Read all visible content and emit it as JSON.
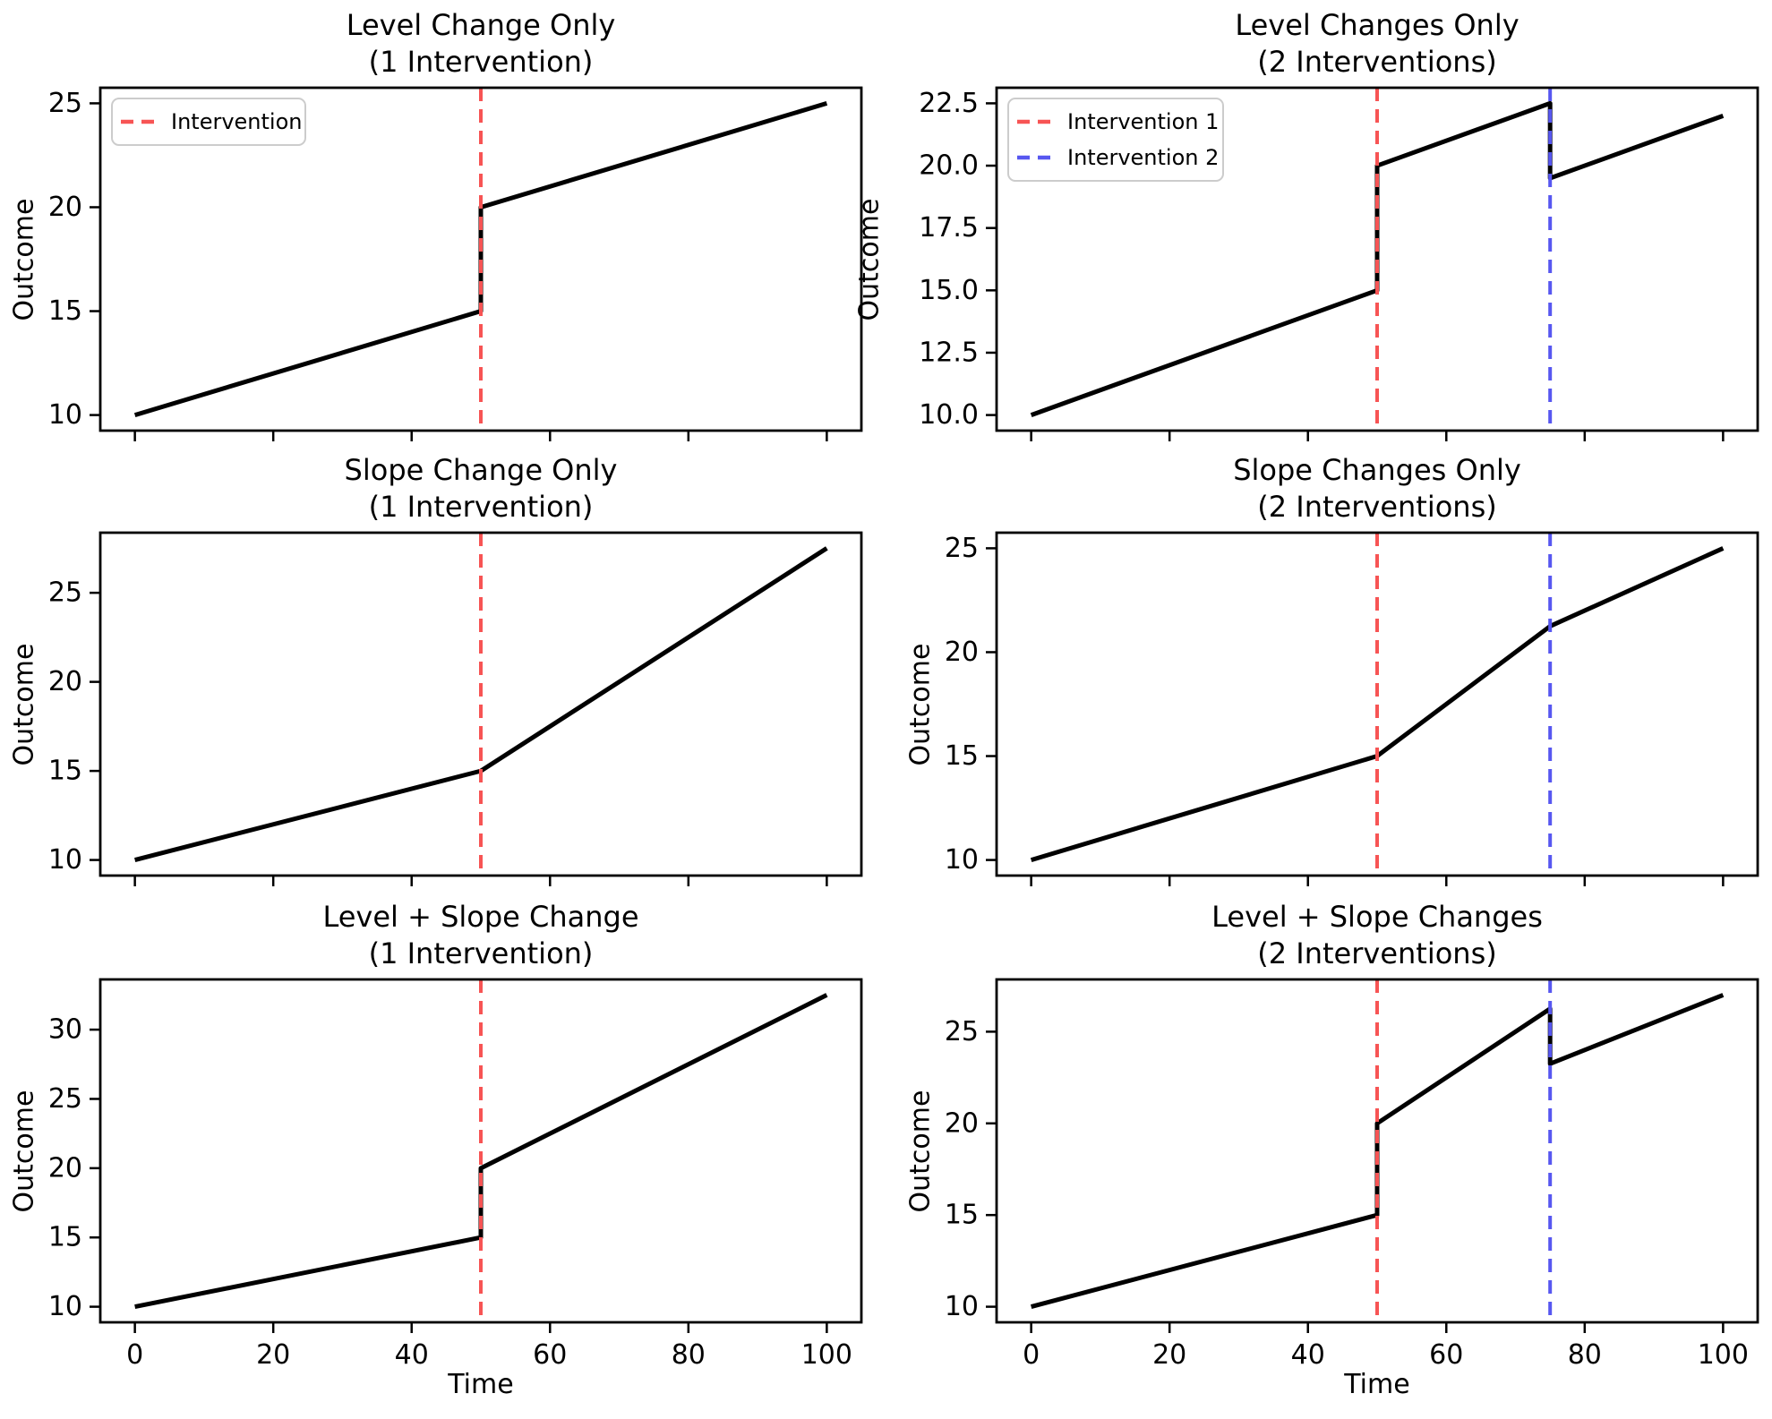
{
  "figure": {
    "background": "#ffffff",
    "series_color": "#000000",
    "intervention1_color": "#f75454",
    "intervention2_color": "#5757f0"
  },
  "chart_data": [
    {
      "type": "line",
      "title": "Level Change Only",
      "subtitle": "(1 Intervention)",
      "ylabel": "Outcome",
      "xlabel": "",
      "grid": false,
      "legend_position": "upper-left",
      "xlim": [
        -5,
        105
      ],
      "ylim": [
        9.25,
        25.75
      ],
      "xticks": [
        0,
        20,
        40,
        60,
        80,
        100
      ],
      "xtick_labels": [],
      "yticks": [
        10,
        15,
        20,
        25
      ],
      "ytick_labels": [
        "10",
        "15",
        "20",
        "25"
      ],
      "series": [
        {
          "name": "Outcome",
          "color": "#000000",
          "points": [
            [
              0,
              10
            ],
            [
              50,
              15
            ],
            [
              50,
              20
            ],
            [
              100,
              25
            ]
          ]
        }
      ],
      "interventions": [
        {
          "x": 50,
          "color": "#f75454",
          "style": "dashed"
        }
      ],
      "legend": {
        "visible": true,
        "items": [
          {
            "label": "Intervention",
            "color": "#f75454"
          }
        ]
      }
    },
    {
      "type": "line",
      "title": "Level Changes Only",
      "subtitle": "(2 Interventions)",
      "ylabel": "Outcome",
      "xlabel": "",
      "grid": false,
      "legend_position": "upper-left",
      "xlim": [
        -5,
        105
      ],
      "ylim": [
        9.375,
        23.125
      ],
      "xticks": [
        0,
        20,
        40,
        60,
        80,
        100
      ],
      "xtick_labels": [],
      "yticks": [
        10,
        12.5,
        15,
        17.5,
        20,
        22.5
      ],
      "ytick_labels": [
        "10.0",
        "12.5",
        "15.0",
        "17.5",
        "20.0",
        "22.5"
      ],
      "series": [
        {
          "name": "Outcome",
          "color": "#000000",
          "points": [
            [
              0,
              10
            ],
            [
              50,
              15
            ],
            [
              50,
              20
            ],
            [
              75,
              22.5
            ],
            [
              75,
              19.5
            ],
            [
              100,
              22
            ]
          ]
        }
      ],
      "interventions": [
        {
          "x": 50,
          "color": "#f75454",
          "style": "dashed"
        },
        {
          "x": 75,
          "color": "#5757f0",
          "style": "dashed"
        }
      ],
      "legend": {
        "visible": true,
        "items": [
          {
            "label": "Intervention 1",
            "color": "#f75454"
          },
          {
            "label": "Intervention 2",
            "color": "#5757f0"
          }
        ]
      }
    },
    {
      "type": "line",
      "title": "Slope Change Only",
      "subtitle": "(1 Intervention)",
      "ylabel": "Outcome",
      "xlabel": "",
      "grid": false,
      "legend_position": "none",
      "xlim": [
        -5,
        105
      ],
      "ylim": [
        9.125,
        28.375
      ],
      "xticks": [
        0,
        20,
        40,
        60,
        80,
        100
      ],
      "xtick_labels": [],
      "yticks": [
        10,
        15,
        20,
        25
      ],
      "ytick_labels": [
        "10",
        "15",
        "20",
        "25"
      ],
      "series": [
        {
          "name": "Outcome",
          "color": "#000000",
          "points": [
            [
              0,
              10
            ],
            [
              50,
              15
            ],
            [
              100,
              27.5
            ]
          ]
        }
      ],
      "interventions": [
        {
          "x": 50,
          "color": "#f75454",
          "style": "dashed"
        }
      ],
      "legend": {
        "visible": false,
        "items": []
      }
    },
    {
      "type": "line",
      "title": "Slope Changes Only",
      "subtitle": "(2 Interventions)",
      "ylabel": "Outcome",
      "xlabel": "",
      "grid": false,
      "legend_position": "none",
      "xlim": [
        -5,
        105
      ],
      "ylim": [
        9.25,
        25.75
      ],
      "xticks": [
        0,
        20,
        40,
        60,
        80,
        100
      ],
      "xtick_labels": [],
      "yticks": [
        10,
        15,
        20,
        25
      ],
      "ytick_labels": [
        "10",
        "15",
        "20",
        "25"
      ],
      "series": [
        {
          "name": "Outcome",
          "color": "#000000",
          "points": [
            [
              0,
              10
            ],
            [
              50,
              15
            ],
            [
              75,
              21.25
            ],
            [
              100,
              25
            ]
          ]
        }
      ],
      "interventions": [
        {
          "x": 50,
          "color": "#f75454",
          "style": "dashed"
        },
        {
          "x": 75,
          "color": "#5757f0",
          "style": "dashed"
        }
      ],
      "legend": {
        "visible": false,
        "items": []
      }
    },
    {
      "type": "line",
      "title": "Level + Slope Change",
      "subtitle": "(1 Intervention)",
      "ylabel": "Outcome",
      "xlabel": "Time",
      "grid": false,
      "legend_position": "none",
      "xlim": [
        -5,
        105
      ],
      "ylim": [
        8.875,
        33.625
      ],
      "xticks": [
        0,
        20,
        40,
        60,
        80,
        100
      ],
      "xtick_labels": [
        "0",
        "20",
        "40",
        "60",
        "80",
        "100"
      ],
      "yticks": [
        10,
        15,
        20,
        25,
        30
      ],
      "ytick_labels": [
        "10",
        "15",
        "20",
        "25",
        "30"
      ],
      "series": [
        {
          "name": "Outcome",
          "color": "#000000",
          "points": [
            [
              0,
              10
            ],
            [
              50,
              15
            ],
            [
              50,
              20
            ],
            [
              100,
              32.5
            ]
          ]
        }
      ],
      "interventions": [
        {
          "x": 50,
          "color": "#f75454",
          "style": "dashed"
        }
      ],
      "legend": {
        "visible": false,
        "items": []
      }
    },
    {
      "type": "line",
      "title": "Level + Slope Changes",
      "subtitle": "(2 Interventions)",
      "ylabel": "Outcome",
      "xlabel": "Time",
      "grid": false,
      "legend_position": "none",
      "xlim": [
        -5,
        105
      ],
      "ylim": [
        9.15,
        27.85
      ],
      "xticks": [
        0,
        20,
        40,
        60,
        80,
        100
      ],
      "xtick_labels": [
        "0",
        "20",
        "40",
        "60",
        "80",
        "100"
      ],
      "yticks": [
        10,
        15,
        20,
        25
      ],
      "ytick_labels": [
        "10",
        "15",
        "20",
        "25"
      ],
      "series": [
        {
          "name": "Outcome",
          "color": "#000000",
          "points": [
            [
              0,
              10
            ],
            [
              50,
              15
            ],
            [
              50,
              20
            ],
            [
              75,
              26.25
            ],
            [
              75,
              23.25
            ],
            [
              100,
              27
            ]
          ]
        }
      ],
      "interventions": [
        {
          "x": 50,
          "color": "#f75454",
          "style": "dashed"
        },
        {
          "x": 75,
          "color": "#5757f0",
          "style": "dashed"
        }
      ],
      "legend": {
        "visible": false,
        "items": []
      }
    }
  ]
}
